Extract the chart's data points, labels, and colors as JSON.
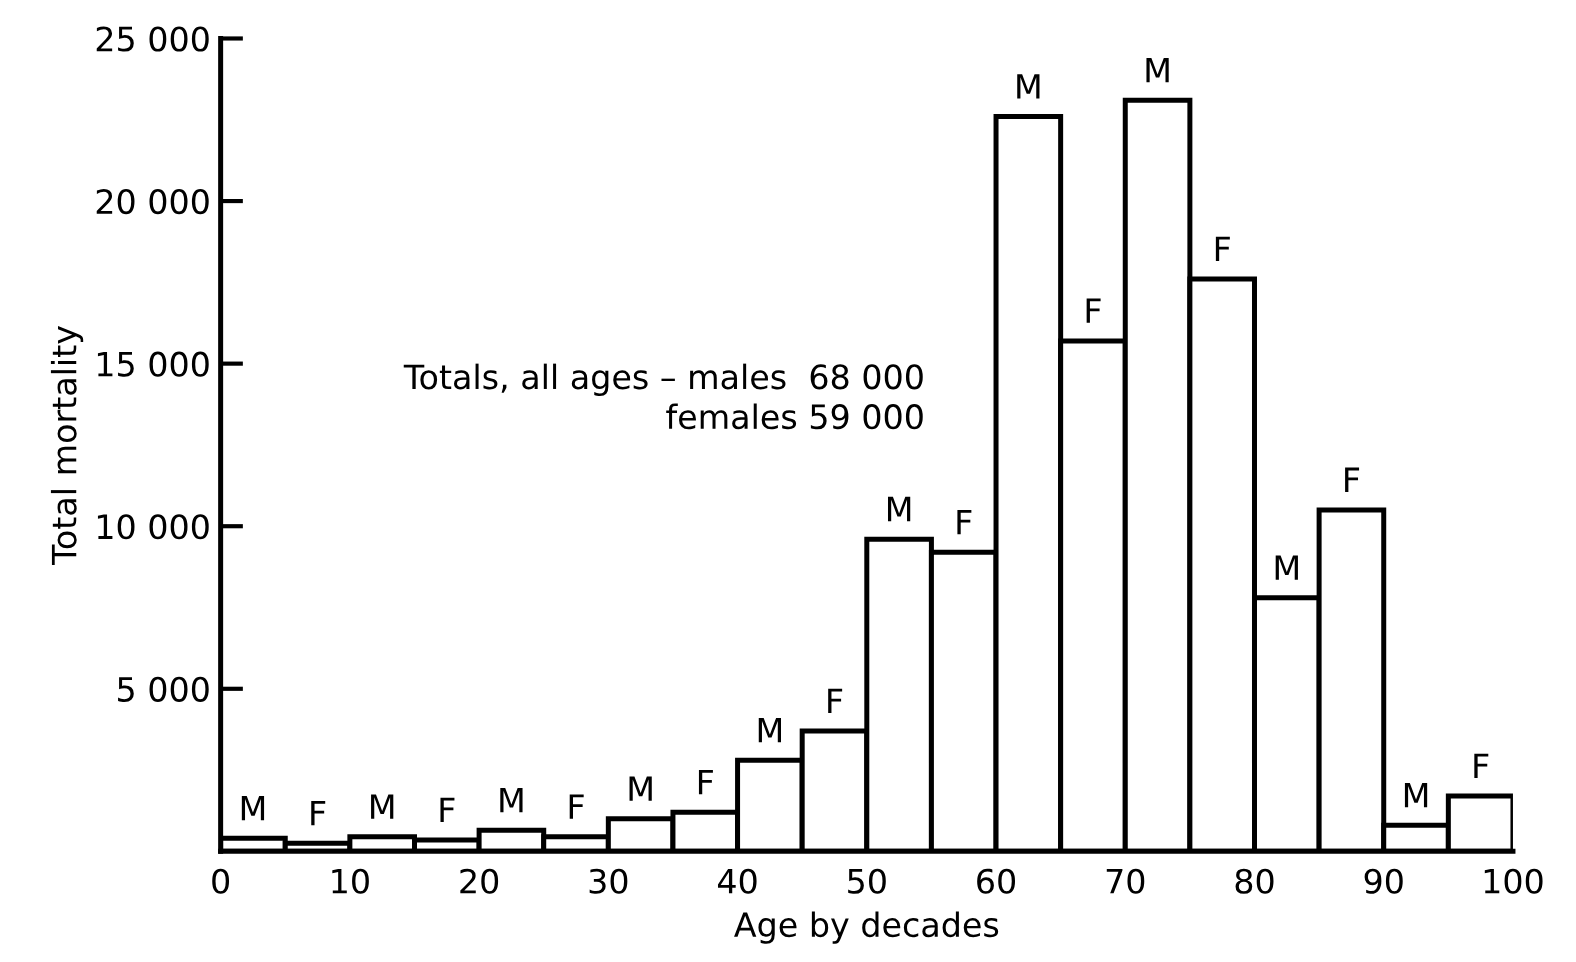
{
  "chart_data": {
    "type": "histogram",
    "xlabel": "Age by decades",
    "ylabel": "Total mortality",
    "bins": [
      0,
      5,
      10,
      15,
      20,
      25,
      30,
      35,
      40,
      45,
      50,
      55,
      60,
      65,
      70,
      75,
      80,
      85,
      90,
      95,
      100
    ],
    "values": [
      400,
      250,
      450,
      350,
      650,
      450,
      1000,
      1200,
      2800,
      3700,
      9600,
      9200,
      22600,
      15700,
      23100,
      17600,
      7800,
      10500,
      800,
      1700
    ],
    "color": "#ffffff",
    "xlim": [
      0,
      100
    ],
    "xticks": [
      0,
      10,
      20,
      30,
      40,
      50,
      60,
      70,
      80,
      90,
      100
    ],
    "ylim": [
      0,
      25000
    ],
    "yticks": [
      {
        "value": 5000,
        "label": "5 000"
      },
      {
        "value": 10000,
        "label": "10 000"
      },
      {
        "value": 15000,
        "label": "15 000"
      },
      {
        "value": 20000,
        "label": "20 000"
      },
      {
        "value": 25000,
        "label": "25 000"
      }
    ],
    "grid": false,
    "legend": false,
    "annotations": [
      "Totals, all ages – males  68 000\nfemales 59 000",
      {
        "text": "M",
        "x": 2.5,
        "y": 400
      },
      {
        "text": "F",
        "x": 7.5,
        "y": 250
      },
      {
        "text": "M",
        "x": 12.5,
        "y": 450
      },
      {
        "text": "F",
        "x": 17.5,
        "y": 350
      },
      {
        "text": "M",
        "x": 22.5,
        "y": 650
      },
      {
        "text": "F",
        "x": 27.5,
        "y": 450
      },
      {
        "text": "M",
        "x": 32.5,
        "y": 1000
      },
      {
        "text": "F",
        "x": 37.5,
        "y": 1200
      },
      {
        "text": "M",
        "x": 42.5,
        "y": 2800
      },
      {
        "text": "F",
        "x": 47.5,
        "y": 3700
      },
      {
        "text": "M",
        "x": 52.5,
        "y": 9600
      },
      {
        "text": "F",
        "x": 57.5,
        "y": 9200
      },
      {
        "text": "M",
        "x": 62.5,
        "y": 22600
      },
      {
        "text": "F",
        "x": 67.5,
        "y": 15700
      },
      {
        "text": "M",
        "x": 72.5,
        "y": 23100
      },
      {
        "text": "F",
        "x": 77.5,
        "y": 17600
      },
      {
        "text": "M",
        "x": 82.5,
        "y": 7800
      },
      {
        "text": "F",
        "x": 87.5,
        "y": 10500
      },
      {
        "text": "M",
        "x": 92.5,
        "y": 800
      },
      {
        "text": "F",
        "x": 97.5,
        "y": 1700
      }
    ]
  }
}
